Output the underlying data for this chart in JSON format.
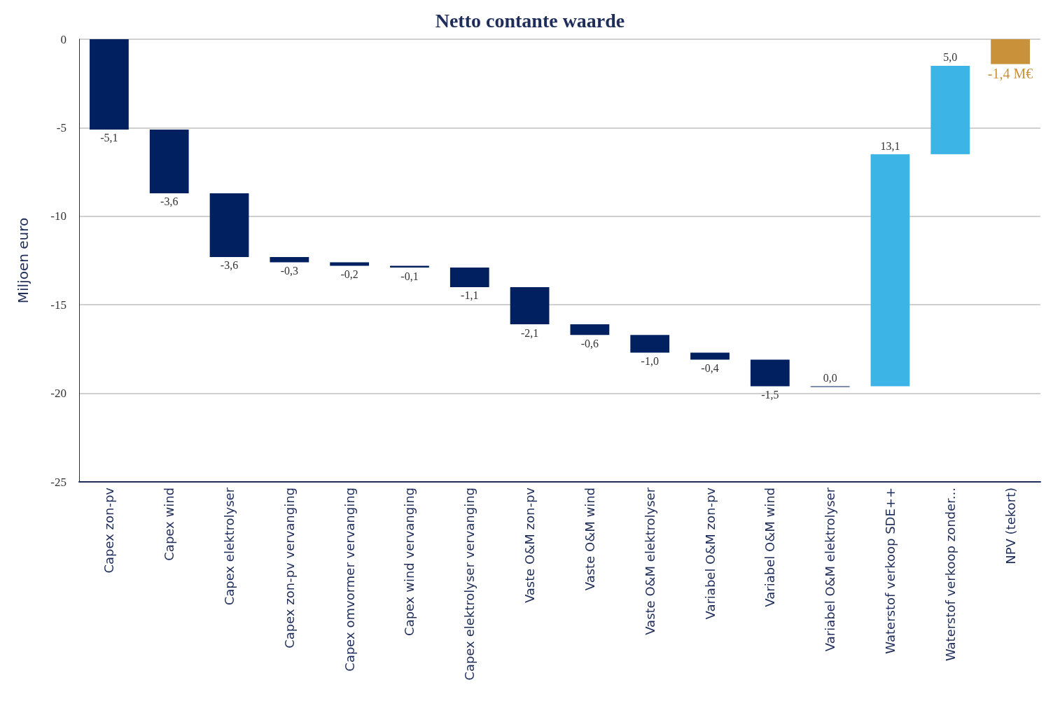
{
  "chart_data": {
    "type": "bar",
    "title": "Netto contante waarde",
    "ylabel": "Miljoen euro",
    "categories": [
      "Capex zon-pv",
      "Capex wind",
      "Capex elektrolyser",
      "Capex zon-pv vervanging",
      "Capex omvormer vervanging",
      "Capex wind vervanging",
      "Capex elektrolyser vervanging",
      "Vaste O&M zon-pv",
      "Vaste O&M wind",
      "Vaste O&M elektrolyser",
      "Variabel O&M zon-pv",
      "Variabel O&M wind",
      "Variabel O&M elektrolyser",
      "Waterstof verkoop SDE++",
      "Waterstof verkoop zonder...",
      "NPV (tekort)"
    ],
    "values": [
      -5.1,
      -3.6,
      -3.6,
      -0.3,
      -0.2,
      -0.1,
      -1.1,
      -2.1,
      -0.6,
      -1.0,
      -0.4,
      -1.5,
      0.0,
      13.1,
      5.0,
      -1.4
    ],
    "base": [
      0,
      -5.1,
      -8.7,
      -12.3,
      -12.6,
      -12.8,
      -12.9,
      -14.0,
      -16.1,
      -16.7,
      -17.7,
      -18.1,
      -19.6,
      -19.6,
      -6.5,
      0
    ],
    "value_labels": [
      "-5,1",
      "-3,6",
      "-3,6",
      "-0,3",
      "-0,2",
      "-0,1",
      "-1,1",
      "-2,1",
      "-0,6",
      "-1,0",
      "-0,4",
      "-1,5",
      "0,0",
      "13,1",
      "5,0",
      "-1,4 M€"
    ],
    "colors": [
      "#002060",
      "#002060",
      "#002060",
      "#002060",
      "#002060",
      "#002060",
      "#002060",
      "#002060",
      "#002060",
      "#002060",
      "#002060",
      "#002060",
      "#002060",
      "#3cb4e5",
      "#3cb4e5",
      "#c8913a"
    ],
    "ylim": [
      -25,
      0
    ],
    "yticks": [
      -25,
      -20,
      -15,
      -10,
      -5,
      0
    ],
    "grid": "y"
  }
}
